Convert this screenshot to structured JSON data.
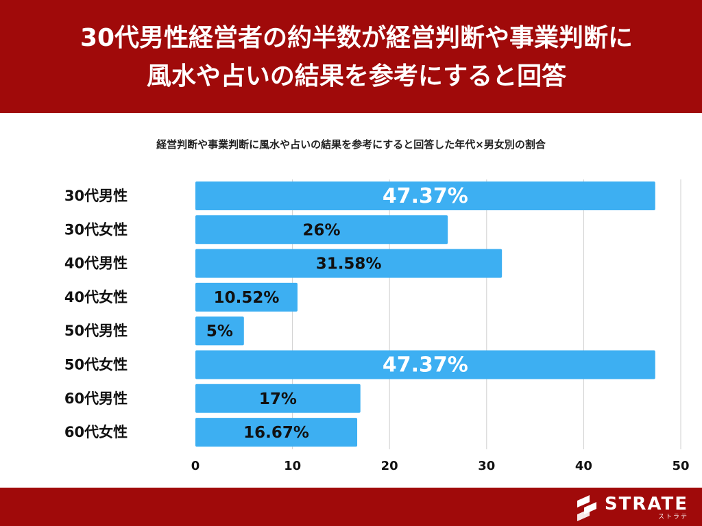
{
  "header": {
    "title_line1": "30代男性経営者の約半数が経営判断や事業判断に",
    "title_line2": "風水や占いの結果を参考にすると回答"
  },
  "brand": {
    "name": "STRATE",
    "kana": "ストラテ",
    "color": "#a00a0a"
  },
  "chart_data": {
    "type": "bar",
    "orientation": "horizontal",
    "title": "経営判断や事業判断に風水や占いの結果を参考にすると回答した年代×男女別の割合",
    "categories": [
      "30代男性",
      "30代女性",
      "40代男性",
      "40代女性",
      "50代男性",
      "50代女性",
      "60代男性",
      "60代女性"
    ],
    "values": [
      47.37,
      26,
      31.58,
      10.52,
      5,
      47.37,
      17,
      16.67
    ],
    "data_labels": [
      "47.37%",
      "26%",
      "31.58%",
      "10.52%",
      "5%",
      "47.37%",
      "17%",
      "16.67%"
    ],
    "xlim": [
      0,
      50
    ],
    "xticks": [
      0,
      10,
      20,
      30,
      40,
      50
    ],
    "grid": true,
    "bar_color": "#3daff2",
    "xlabel": "",
    "ylabel": ""
  }
}
